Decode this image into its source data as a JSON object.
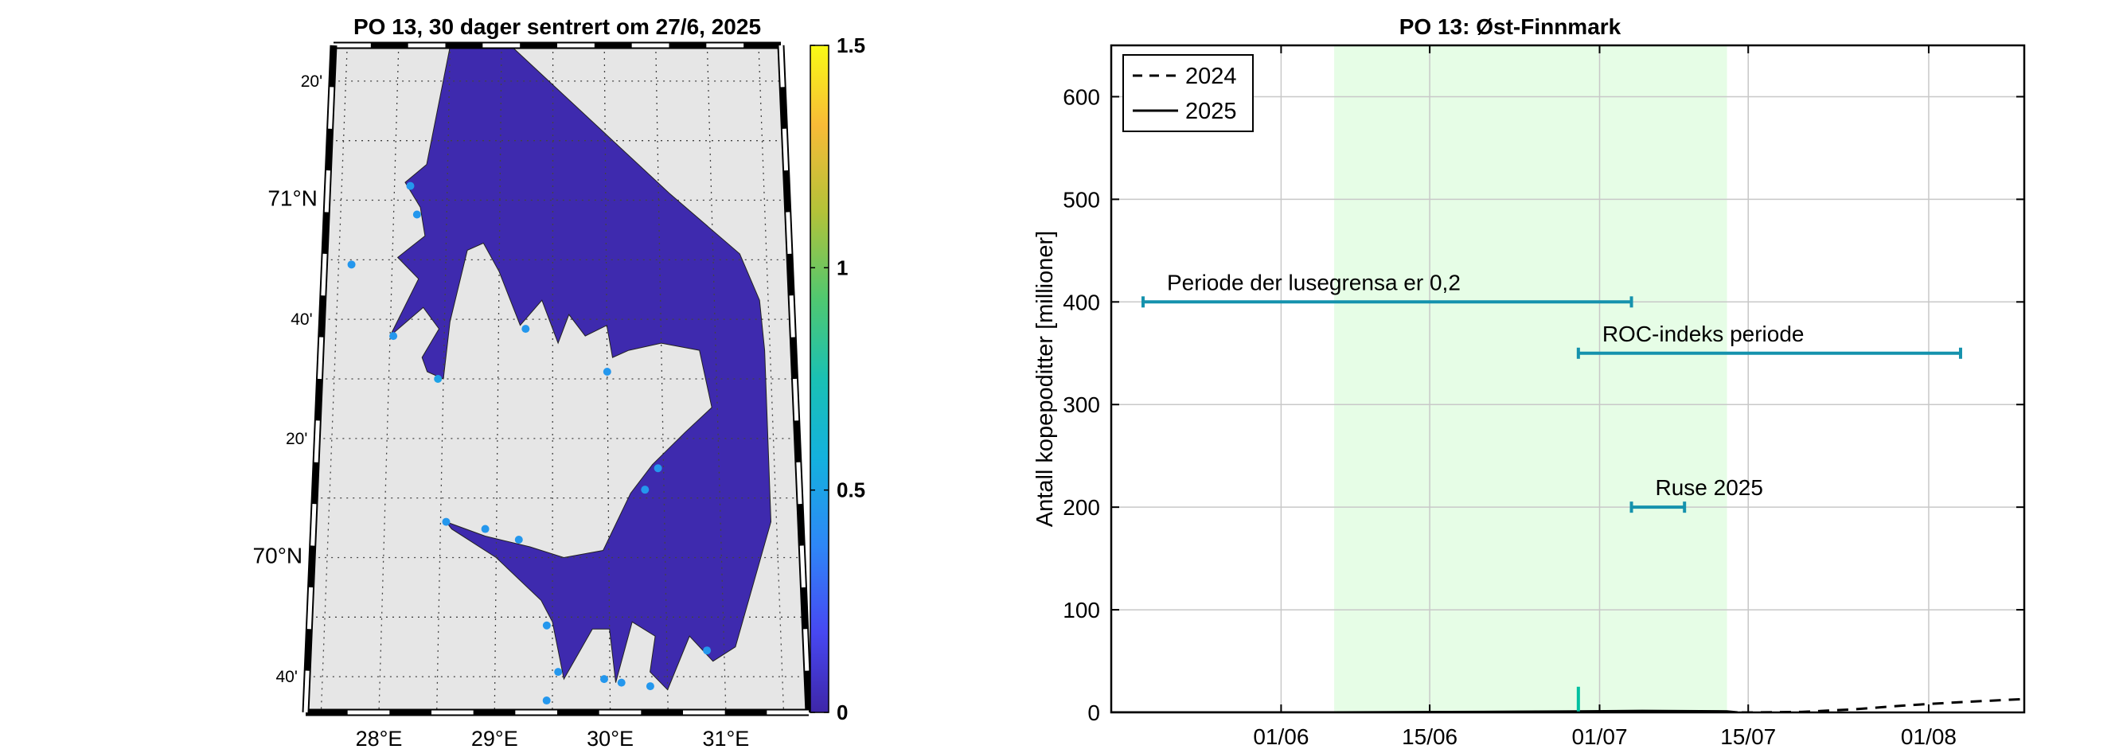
{
  "chart_data": [
    {
      "type": "heatmap",
      "title": "PO 13, 30 dager sentrert om 27/6, 2025",
      "lat_ticks": [
        {
          "label": "20'",
          "lat": 71.3333,
          "major": false
        },
        {
          "label": "71°N",
          "lat": 71.0,
          "major": true
        },
        {
          "label": "40'",
          "lat": 70.6667,
          "major": false
        },
        {
          "label": "20'",
          "lat": 70.3333,
          "major": false
        },
        {
          "label": "70°N",
          "lat": 70.0,
          "major": true
        },
        {
          "label": "40'",
          "lat": 69.6667,
          "major": false
        }
      ],
      "lon_ticks": [
        {
          "label": "28°E",
          "lon": 28
        },
        {
          "label": "29°E",
          "lon": 29
        },
        {
          "label": "30°E",
          "lon": 30
        },
        {
          "label": "31°E",
          "lon": 31
        }
      ],
      "colorbar": {
        "min": 0,
        "max": 1.5,
        "ticks": [
          {
            "value": 0,
            "label": "0"
          },
          {
            "value": 0.5,
            "label": "0.5"
          },
          {
            "value": 1,
            "label": "1"
          },
          {
            "value": 1.5,
            "label": "1.5"
          }
        ],
        "colormap": "parula"
      },
      "sea_value": 0.05,
      "colors": {
        "land": "#e6e6e6",
        "sea_field": "#3e2aae",
        "stations": "#1e96ef",
        "frame": "#000000"
      },
      "stations": [
        {
          "lon": 27.62,
          "lat": 70.82,
          "value": 0.45
        },
        {
          "lon": 28.15,
          "lat": 71.04,
          "value": 0.45
        },
        {
          "lon": 28.22,
          "lat": 70.96,
          "value": 0.45
        },
        {
          "lon": 28.03,
          "lat": 70.62,
          "value": 0.45
        },
        {
          "lon": 28.45,
          "lat": 70.5,
          "value": 0.5
        },
        {
          "lon": 29.25,
          "lat": 70.64,
          "value": 0.45
        },
        {
          "lon": 30.0,
          "lat": 70.52,
          "value": 0.45
        },
        {
          "lon": 30.45,
          "lat": 70.25,
          "value": 0.45
        },
        {
          "lon": 30.33,
          "lat": 70.19,
          "value": 0.45
        },
        {
          "lon": 28.55,
          "lat": 70.1,
          "value": 0.45
        },
        {
          "lon": 28.9,
          "lat": 70.08,
          "value": 0.45
        },
        {
          "lon": 29.2,
          "lat": 70.05,
          "value": 0.45
        },
        {
          "lon": 29.45,
          "lat": 69.81,
          "value": 0.45
        },
        {
          "lon": 30.85,
          "lat": 69.74,
          "value": 0.45
        },
        {
          "lon": 29.55,
          "lat": 69.68,
          "value": 0.45
        },
        {
          "lon": 29.95,
          "lat": 69.66,
          "value": 0.45
        },
        {
          "lon": 30.1,
          "lat": 69.65,
          "value": 0.45
        },
        {
          "lon": 30.35,
          "lat": 69.64,
          "value": 0.45
        },
        {
          "lon": 29.45,
          "lat": 69.6,
          "value": 0.45
        }
      ]
    },
    {
      "type": "line",
      "title": "PO 13: Øst-Finnmark",
      "ylabel": "Antall kopepoditter [millioner]",
      "xlabel": "",
      "ylim": [
        0,
        650
      ],
      "yticks": [
        0,
        100,
        200,
        300,
        400,
        500,
        600
      ],
      "x_range": [
        "2025-05-16",
        "2025-08-10"
      ],
      "xticks": [
        {
          "date": "2025-06-01",
          "label": "01/06"
        },
        {
          "date": "2025-06-15",
          "label": "15/06"
        },
        {
          "date": "2025-07-01",
          "label": "01/07"
        },
        {
          "date": "2025-07-15",
          "label": "15/07"
        },
        {
          "date": "2025-08-01",
          "label": "01/08"
        }
      ],
      "grid": true,
      "shaded_period": {
        "start": "2025-06-06",
        "end": "2025-07-13",
        "color": "#e6fde6"
      },
      "legend": {
        "position": "top-left"
      },
      "series": [
        {
          "name": "2024",
          "style": "dashed",
          "points": [
            [
              "2025-05-16",
              0
            ],
            [
              "2025-07-15",
              0
            ],
            [
              "2025-07-20",
              0.5
            ],
            [
              "2025-07-25",
              3
            ],
            [
              "2025-07-30",
              7
            ],
            [
              "2025-08-04",
              10
            ],
            [
              "2025-08-10",
              13
            ]
          ]
        },
        {
          "name": "2025",
          "style": "solid",
          "points": [
            [
              "2025-05-16",
              0
            ],
            [
              "2025-06-06",
              0
            ],
            [
              "2025-06-20",
              0.5
            ],
            [
              "2025-06-29",
              1
            ],
            [
              "2025-07-05",
              1.5
            ],
            [
              "2025-07-13",
              1
            ],
            [
              "2025-07-14",
              0
            ]
          ]
        }
      ],
      "annotations": [
        {
          "label": "Periode der lusegrensa er 0,2",
          "start": "2025-05-19",
          "end": "2025-07-04",
          "y": 400
        },
        {
          "label": "ROC-indeks periode",
          "start": "2025-06-29",
          "end": "2025-08-04",
          "y": 350
        },
        {
          "label": "Ruse 2025",
          "start": "2025-07-04",
          "end": "2025-07-09",
          "y": 200
        }
      ],
      "marker": {
        "date": "2025-06-29",
        "y": 25,
        "color": "#00c0a0"
      },
      "colors": {
        "annotation": "#1592ad",
        "grid": "#c8c8c8"
      }
    }
  ]
}
